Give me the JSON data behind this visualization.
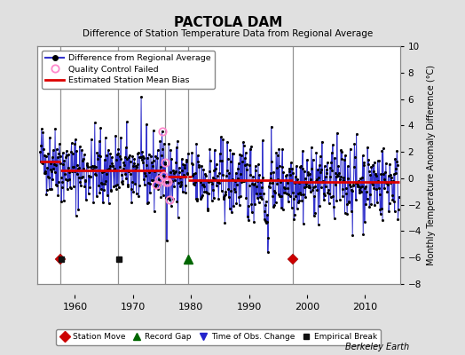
{
  "title": "PACTOLA DAM",
  "subtitle": "Difference of Station Temperature Data from Regional Average",
  "ylabel_right": "Monthly Temperature Anomaly Difference (°C)",
  "ylim": [
    -8,
    10
  ],
  "xlim": [
    1953.5,
    2016
  ],
  "xticks": [
    1960,
    1970,
    1980,
    1990,
    2000,
    2010
  ],
  "yticks_right": [
    -8,
    -6,
    -4,
    -2,
    0,
    2,
    4,
    6,
    8,
    10
  ],
  "background_color": "#e0e0e0",
  "plot_bg_color": "#ffffff",
  "grid_color": "#bbbbbb",
  "line_color": "#3333cc",
  "marker_color": "#000000",
  "bias_color": "#dd0000",
  "qc_failed_color": "#ff88cc",
  "station_move_color": "#cc0000",
  "record_gap_color": "#006600",
  "obs_change_color": "#2222cc",
  "empirical_break_color": "#111111",
  "watermark": "Berkeley Earth",
  "segment_breaks": [
    1957.5,
    1967.5,
    1975.5,
    1979.5,
    1997.5
  ],
  "bias_levels": [
    1.3,
    0.6,
    0.6,
    0.1,
    -0.15,
    -0.25
  ],
  "t_start": 1954.0,
  "t_end": 2015.9,
  "station_moves": [
    1957.5,
    1997.5
  ],
  "record_gaps": [
    1979.5
  ],
  "empirical_breaks": [
    1957.6,
    1967.6
  ],
  "event_y": -6.1,
  "seed": 42
}
